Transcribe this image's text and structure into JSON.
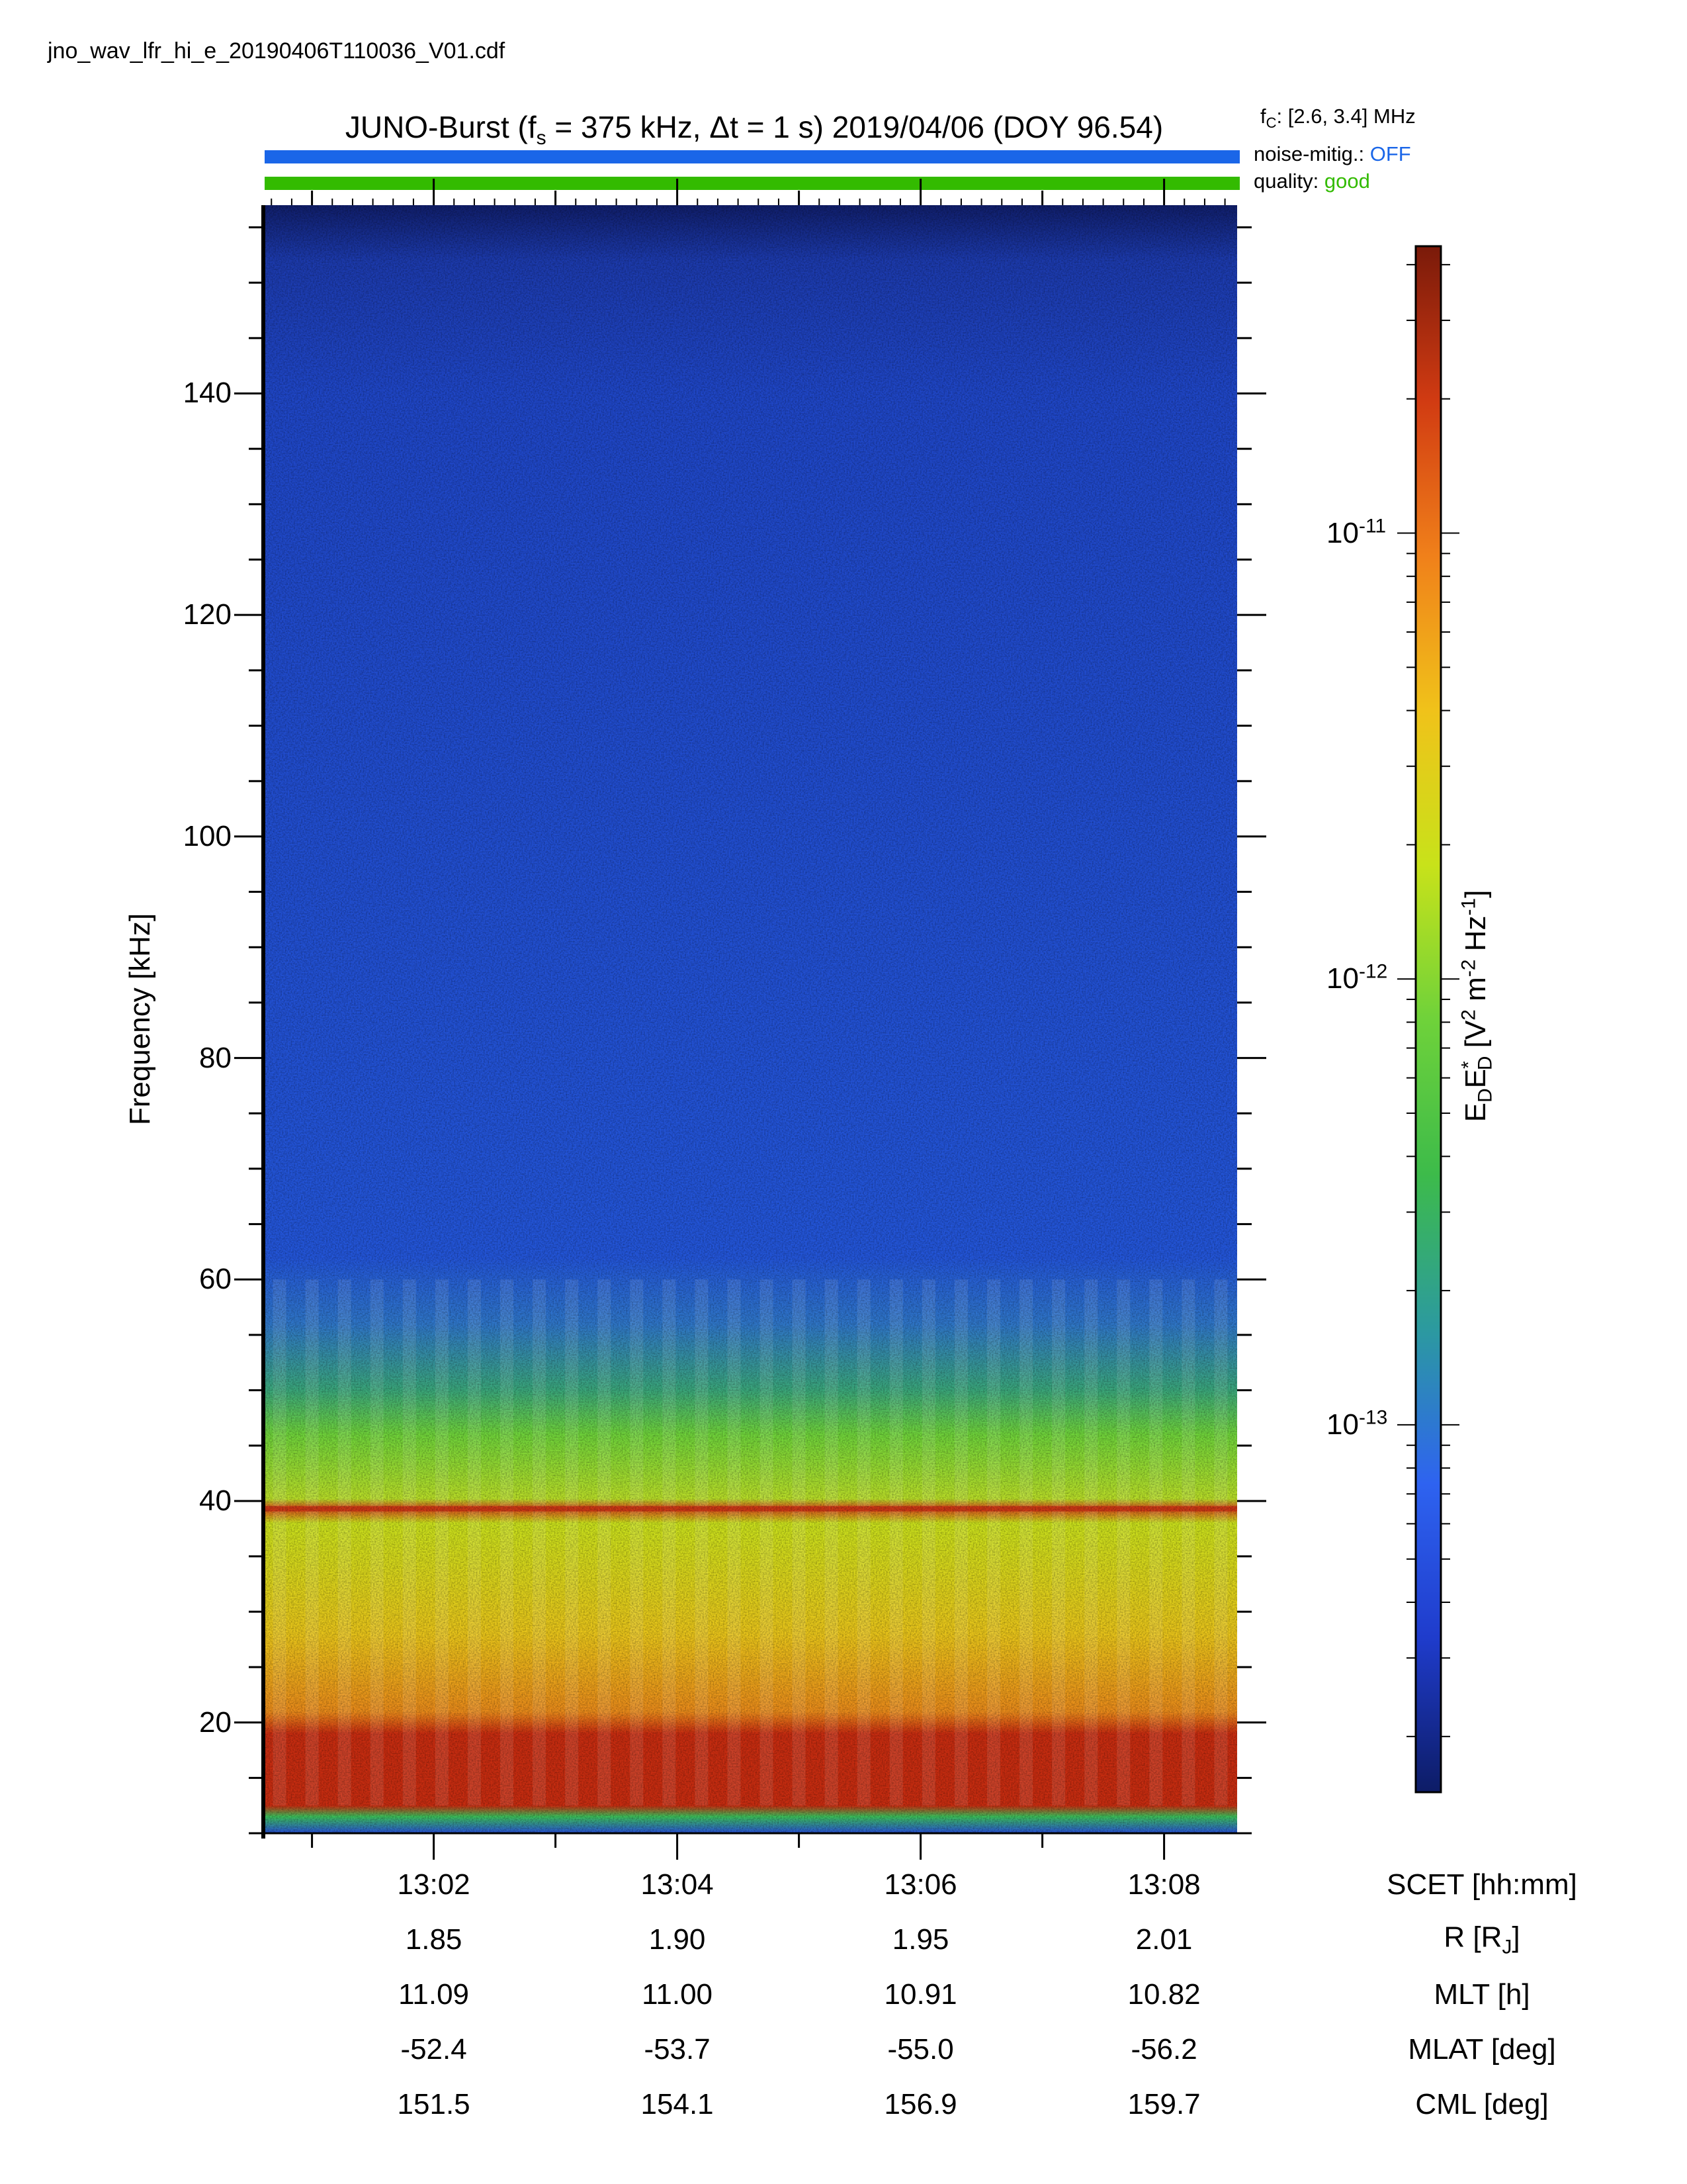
{
  "file_name": "jno_wav_lfr_hi_e_20190406T110036_V01.cdf",
  "header": {
    "title": "JUNO-Burst (fs = 375 kHz, Δt = 1 s)  2019/04/06 (DOY 96.54)",
    "fc": "fC: [2.6, 3.4] MHz",
    "noise_label": "noise-mitig.: ",
    "noise_value": "OFF",
    "quality_label": "quality: ",
    "quality_value": "good",
    "colors": {
      "noise_bar": "#1a66e8",
      "quality_bar": "#33bb00",
      "off_text": "#1a66e8",
      "good_text": "#33bb00"
    }
  },
  "chart_data": {
    "type": "heatmap",
    "title": "JUNO-Burst (fs = 375 kHz, Δt = 1 s)  2019/04/06 (DOY 96.54)",
    "ylabel": "Frequency [kHz]",
    "ylim": [
      10,
      157
    ],
    "yticks": [
      20,
      40,
      60,
      80,
      100,
      120,
      140
    ],
    "xlim": [
      "13:00:36",
      "13:08:36"
    ],
    "xticks": [
      "13:02",
      "13:04",
      "13:06",
      "13:08"
    ],
    "colorbar": {
      "label": "EDE*D [V2 m-2 Hz-1]",
      "scale": "log",
      "range": [
        1.5e-14,
        4.4e-11
      ],
      "ticks": [
        {
          "value": 1e-11,
          "mantissa": "10",
          "exponent": "-11"
        },
        {
          "value": 1e-12,
          "mantissa": "10",
          "exponent": "-12"
        },
        {
          "value": 1e-13,
          "mantissa": "10",
          "exponent": "-13"
        }
      ],
      "colormap": [
        "#0d1c66",
        "#1f3ccc",
        "#2e63f0",
        "#2c9a9f",
        "#3dbb4a",
        "#6fd23a",
        "#c8e21a",
        "#f0c21a",
        "#f0801a",
        "#d13b12",
        "#7a1a0a"
      ]
    },
    "features": [
      {
        "name": "background",
        "freq_range": [
          60,
          157
        ],
        "level": 3e-14
      },
      {
        "name": "mid band",
        "freq_range": [
          40,
          60
        ],
        "level": 4e-13
      },
      {
        "name": "narrowband line",
        "freq": 39.3,
        "level": 1.5e-11
      },
      {
        "name": "intense band",
        "freq_range": [
          12,
          19
        ],
        "level": 2e-11
      },
      {
        "name": "lower edge",
        "freq_range": [
          10,
          12
        ],
        "level": 2e-13
      }
    ]
  },
  "ephemeris": {
    "rows": [
      {
        "label": "SCET [hh:mm]",
        "values": [
          "13:02",
          "13:04",
          "13:06",
          "13:08"
        ]
      },
      {
        "label": "R [RJ]",
        "values": [
          "1.85",
          "1.90",
          "1.95",
          "2.01"
        ]
      },
      {
        "label": "MLT [h]",
        "values": [
          "11.09",
          "11.00",
          "10.91",
          "10.82"
        ]
      },
      {
        "label": "MLAT [deg]",
        "values": [
          "-52.4",
          "-53.7",
          "-55.0",
          "-56.2"
        ]
      },
      {
        "label": "CML [deg]",
        "values": [
          "151.5",
          "154.1",
          "156.9",
          "159.7"
        ]
      }
    ]
  }
}
